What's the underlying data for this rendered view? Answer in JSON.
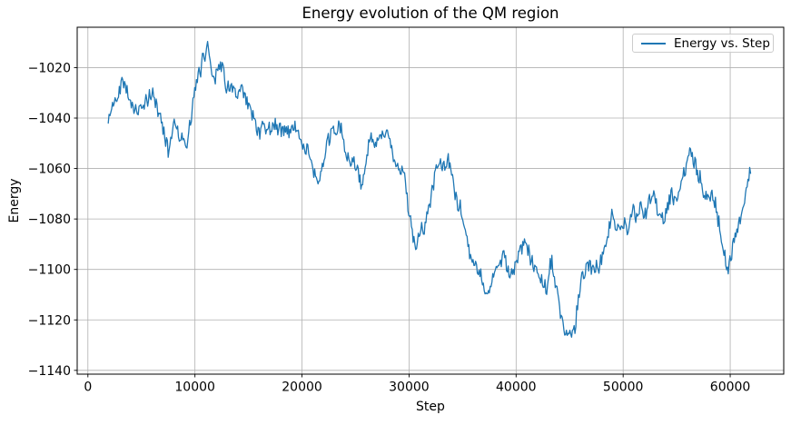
{
  "chart_data": {
    "type": "line",
    "title": "Energy evolution of the QM region",
    "xlabel": "Step",
    "ylabel": "Energy",
    "legend": {
      "label": "Energy vs. Step",
      "position": "upper right"
    },
    "grid": true,
    "line_color": "#1f77b4",
    "grid_color": "#b0b0b0",
    "spine_color": "#000000",
    "xlim": [
      -1000,
      65000
    ],
    "ylim": [
      -1141.5,
      -1004
    ],
    "x_ticks": [
      0,
      10000,
      20000,
      30000,
      40000,
      50000,
      60000
    ],
    "x_tick_labels": [
      "0",
      "10000",
      "20000",
      "30000",
      "40000",
      "50000",
      "60000"
    ],
    "y_ticks": [
      -1020,
      -1040,
      -1060,
      -1080,
      -1100,
      -1120,
      -1140
    ],
    "y_tick_labels": [
      "−1020",
      "−1040",
      "−1060",
      "−1080",
      "−1100",
      "−1120",
      "−1140"
    ],
    "observed_max": [
      11100,
      -1010
    ],
    "observed_min": [
      44900,
      -1135.5
    ],
    "noise_envelope": 6,
    "series": [
      {
        "name": "Energy vs. Step",
        "trend": [
          [
            1900,
            -1042
          ],
          [
            2200,
            -1037
          ],
          [
            2600,
            -1032
          ],
          [
            3000,
            -1027
          ],
          [
            3300,
            -1022
          ],
          [
            3600,
            -1026
          ],
          [
            4000,
            -1032
          ],
          [
            4400,
            -1037
          ],
          [
            4800,
            -1038
          ],
          [
            5200,
            -1035
          ],
          [
            5600,
            -1033
          ],
          [
            6000,
            -1031
          ],
          [
            6400,
            -1035
          ],
          [
            6800,
            -1040
          ],
          [
            7200,
            -1047
          ],
          [
            7500,
            -1052
          ],
          [
            7800,
            -1046
          ],
          [
            8100,
            -1040
          ],
          [
            8500,
            -1044
          ],
          [
            8900,
            -1049
          ],
          [
            9200,
            -1052
          ],
          [
            9500,
            -1045
          ],
          [
            9800,
            -1037
          ],
          [
            10100,
            -1030
          ],
          [
            10400,
            -1024
          ],
          [
            10700,
            -1018
          ],
          [
            11000,
            -1013
          ],
          [
            11200,
            -1011
          ],
          [
            11500,
            -1018
          ],
          [
            11800,
            -1024
          ],
          [
            12100,
            -1019
          ],
          [
            12400,
            -1014
          ],
          [
            12700,
            -1021
          ],
          [
            13000,
            -1027
          ],
          [
            13300,
            -1025
          ],
          [
            13600,
            -1029
          ],
          [
            14000,
            -1034
          ],
          [
            14400,
            -1030
          ],
          [
            14800,
            -1034
          ],
          [
            15200,
            -1038
          ],
          [
            15600,
            -1042
          ],
          [
            16000,
            -1045
          ],
          [
            16400,
            -1041
          ],
          [
            16800,
            -1044
          ],
          [
            17200,
            -1040
          ],
          [
            17600,
            -1043
          ],
          [
            18000,
            -1046
          ],
          [
            18400,
            -1043
          ],
          [
            18800,
            -1047
          ],
          [
            19200,
            -1044
          ],
          [
            19600,
            -1046
          ],
          [
            20000,
            -1049
          ],
          [
            20400,
            -1053
          ],
          [
            20800,
            -1057
          ],
          [
            21200,
            -1061
          ],
          [
            21600,
            -1065
          ],
          [
            22000,
            -1056
          ],
          [
            22400,
            -1051
          ],
          [
            22800,
            -1048
          ],
          [
            23200,
            -1045
          ],
          [
            23600,
            -1044
          ],
          [
            24000,
            -1054
          ],
          [
            24400,
            -1059
          ],
          [
            24800,
            -1061
          ],
          [
            25200,
            -1060
          ],
          [
            25600,
            -1068
          ],
          [
            26000,
            -1056
          ],
          [
            26400,
            -1049
          ],
          [
            26800,
            -1053
          ],
          [
            27200,
            -1052
          ],
          [
            27600,
            -1050
          ],
          [
            28000,
            -1049
          ],
          [
            28400,
            -1052
          ],
          [
            28800,
            -1056
          ],
          [
            29200,
            -1060
          ],
          [
            29600,
            -1064
          ],
          [
            30000,
            -1079
          ],
          [
            30300,
            -1088
          ],
          [
            30600,
            -1093
          ],
          [
            30900,
            -1088
          ],
          [
            31300,
            -1083
          ],
          [
            31700,
            -1077
          ],
          [
            32100,
            -1068
          ],
          [
            32500,
            -1059
          ],
          [
            32800,
            -1053
          ],
          [
            33100,
            -1055
          ],
          [
            33400,
            -1060
          ],
          [
            33700,
            -1057
          ],
          [
            34000,
            -1062
          ],
          [
            34400,
            -1069
          ],
          [
            34800,
            -1077
          ],
          [
            35200,
            -1085
          ],
          [
            35600,
            -1091
          ],
          [
            36000,
            -1096
          ],
          [
            36400,
            -1100
          ],
          [
            36800,
            -1104
          ],
          [
            37100,
            -1112
          ],
          [
            37400,
            -1106
          ],
          [
            37700,
            -1102
          ],
          [
            38000,
            -1102
          ],
          [
            38400,
            -1099
          ],
          [
            38800,
            -1096
          ],
          [
            39200,
            -1099
          ],
          [
            39600,
            -1102
          ],
          [
            40000,
            -1099
          ],
          [
            40400,
            -1095
          ],
          [
            40900,
            -1091
          ],
          [
            41300,
            -1096
          ],
          [
            41700,
            -1100
          ],
          [
            42100,
            -1102
          ],
          [
            42500,
            -1105
          ],
          [
            42900,
            -1108
          ],
          [
            43300,
            -1096
          ],
          [
            43700,
            -1107
          ],
          [
            44000,
            -1115
          ],
          [
            44300,
            -1122
          ],
          [
            44600,
            -1128
          ],
          [
            44900,
            -1132
          ],
          [
            45200,
            -1127
          ],
          [
            45500,
            -1121
          ],
          [
            45800,
            -1112
          ],
          [
            46100,
            -1104
          ],
          [
            46500,
            -1101
          ],
          [
            46900,
            -1099
          ],
          [
            47300,
            -1097
          ],
          [
            47700,
            -1099
          ],
          [
            48100,
            -1093
          ],
          [
            48500,
            -1088
          ],
          [
            48900,
            -1076
          ],
          [
            49300,
            -1084
          ],
          [
            49700,
            -1081
          ],
          [
            50100,
            -1080
          ],
          [
            50500,
            -1083
          ],
          [
            50900,
            -1077
          ],
          [
            51300,
            -1081
          ],
          [
            51700,
            -1076
          ],
          [
            52100,
            -1079
          ],
          [
            52500,
            -1074
          ],
          [
            52900,
            -1070
          ],
          [
            53300,
            -1075
          ],
          [
            53700,
            -1078
          ],
          [
            54100,
            -1073
          ],
          [
            54500,
            -1067
          ],
          [
            54900,
            -1072
          ],
          [
            55300,
            -1068
          ],
          [
            55700,
            -1063
          ],
          [
            56000,
            -1058
          ],
          [
            56300,
            -1054
          ],
          [
            56700,
            -1060
          ],
          [
            57100,
            -1064
          ],
          [
            57500,
            -1069
          ],
          [
            57900,
            -1073
          ],
          [
            58300,
            -1069
          ],
          [
            58700,
            -1076
          ],
          [
            59100,
            -1086
          ],
          [
            59500,
            -1094
          ],
          [
            59800,
            -1101
          ],
          [
            60200,
            -1092
          ],
          [
            60600,
            -1083
          ],
          [
            61000,
            -1079
          ],
          [
            61300,
            -1073
          ],
          [
            61600,
            -1066
          ],
          [
            61900,
            -1058
          ]
        ]
      }
    ]
  }
}
